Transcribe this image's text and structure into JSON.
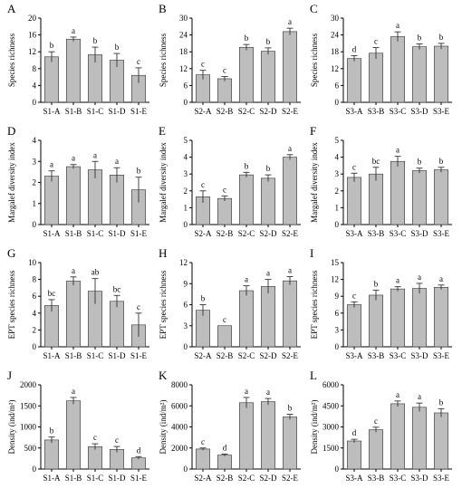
{
  "style": {
    "bar_fill": "#bdbdbd",
    "bar_stroke": "#333333",
    "axis_color": "#000000",
    "error_bar_color": "#333333"
  },
  "chart_data": [
    {
      "panel": "A",
      "type": "bar",
      "ylabel": "Species richness",
      "categories": [
        "S1-A",
        "S1-B",
        "S1-C",
        "S1-D",
        "S1-E"
      ],
      "values": [
        10.8,
        15.0,
        11.3,
        10.0,
        6.4
      ],
      "errors": [
        1.2,
        0.5,
        1.8,
        1.6,
        1.8
      ],
      "sig": [
        "b",
        "a",
        "b",
        "b",
        "c"
      ],
      "ylim": [
        0,
        20
      ],
      "yticks": [
        0,
        4,
        8,
        12,
        16,
        20
      ]
    },
    {
      "panel": "B",
      "type": "bar",
      "ylabel": "Species richness",
      "categories": [
        "S2-A",
        "S2-B",
        "S2-C",
        "S2-D",
        "S2-E"
      ],
      "values": [
        9.8,
        8.4,
        19.6,
        18.2,
        25.2
      ],
      "errors": [
        1.6,
        0.8,
        1.0,
        1.2,
        1.2
      ],
      "sig": [
        "c",
        "c",
        "b",
        "b",
        "a"
      ],
      "ylim": [
        0,
        30
      ],
      "yticks": [
        0,
        6,
        12,
        18,
        24,
        30
      ]
    },
    {
      "panel": "C",
      "type": "bar",
      "ylabel": "Species richness",
      "categories": [
        "S3-A",
        "S3-B",
        "S3-C",
        "S3-D",
        "S3-E"
      ],
      "values": [
        15.6,
        17.5,
        23.4,
        19.8,
        20.0
      ],
      "errors": [
        1.0,
        2.0,
        1.7,
        1.0,
        1.0
      ],
      "sig": [
        "d",
        "c",
        "a",
        "b",
        "b"
      ],
      "ylim": [
        0,
        30
      ],
      "yticks": [
        0,
        6,
        12,
        18,
        24,
        30
      ]
    },
    {
      "panel": "D",
      "type": "bar",
      "ylabel": "Margalef diversity index",
      "categories": [
        "S1-A",
        "S1-B",
        "S1-C",
        "S1-D",
        "S1-E"
      ],
      "values": [
        2.3,
        2.75,
        2.6,
        2.35,
        1.65
      ],
      "errors": [
        0.25,
        0.1,
        0.4,
        0.35,
        0.6
      ],
      "sig": [
        "a",
        "a",
        "a",
        "a",
        "b"
      ],
      "ylim": [
        0,
        4
      ],
      "yticks": [
        0,
        1,
        2,
        3,
        4
      ]
    },
    {
      "panel": "E",
      "type": "bar",
      "ylabel": "Margalef diversity index",
      "categories": [
        "S2-A",
        "S2-B",
        "S2-C",
        "S2-D",
        "S2-E"
      ],
      "values": [
        1.65,
        1.55,
        2.95,
        2.75,
        4.0
      ],
      "errors": [
        0.35,
        0.15,
        0.15,
        0.2,
        0.15
      ],
      "sig": [
        "c",
        "c",
        "b",
        "b",
        "a"
      ],
      "ylim": [
        0,
        5
      ],
      "yticks": [
        0,
        1,
        2,
        3,
        4,
        5
      ]
    },
    {
      "panel": "F",
      "type": "bar",
      "ylabel": "Margalef diversity index",
      "categories": [
        "S3-A",
        "S3-B",
        "S3-C",
        "S3-D",
        "S3-E"
      ],
      "values": [
        2.8,
        3.0,
        3.75,
        3.2,
        3.25
      ],
      "errors": [
        0.25,
        0.4,
        0.3,
        0.15,
        0.15
      ],
      "sig": [
        "c",
        "bc",
        "a",
        "b",
        "b"
      ],
      "ylim": [
        0,
        5
      ],
      "yticks": [
        0,
        1,
        2,
        3,
        4,
        5
      ]
    },
    {
      "panel": "G",
      "type": "bar",
      "ylabel": "EPT species richness",
      "categories": [
        "S1-A",
        "S1-B",
        "S1-C",
        "S1-D",
        "S1-E"
      ],
      "values": [
        4.9,
        7.8,
        6.6,
        5.4,
        2.6
      ],
      "errors": [
        0.7,
        0.5,
        1.5,
        0.7,
        1.4
      ],
      "sig": [
        "bc",
        "a",
        "ab",
        "bc",
        "c"
      ],
      "ylim": [
        0,
        10
      ],
      "yticks": [
        0,
        2,
        4,
        6,
        8,
        10
      ]
    },
    {
      "panel": "H",
      "type": "bar",
      "ylabel": "EPT species richness",
      "categories": [
        "S2-A",
        "S2-B",
        "S2-C",
        "S2-D",
        "S2-E"
      ],
      "values": [
        5.2,
        3.0,
        8.0,
        8.6,
        9.4
      ],
      "errors": [
        0.8,
        0.0,
        0.7,
        1.0,
        0.6
      ],
      "sig": [
        "b",
        "c",
        "a",
        "a",
        "a"
      ],
      "ylim": [
        0,
        12
      ],
      "yticks": [
        0,
        3,
        6,
        9,
        12
      ]
    },
    {
      "panel": "I",
      "type": "bar",
      "ylabel": "EPT species richness",
      "categories": [
        "S3-A",
        "S3-B",
        "S3-C",
        "S3-D",
        "S3-E"
      ],
      "values": [
        7.5,
        9.2,
        10.3,
        10.4,
        10.6
      ],
      "errors": [
        0.5,
        0.9,
        0.4,
        0.9,
        0.4
      ],
      "sig": [
        "c",
        "b",
        "a",
        "a",
        "a"
      ],
      "ylim": [
        0,
        15
      ],
      "yticks": [
        0,
        3,
        6,
        9,
        12,
        15
      ]
    },
    {
      "panel": "J",
      "type": "bar",
      "ylabel": "Density (ind/m²)",
      "categories": [
        "S1-A",
        "S1-B",
        "S1-C",
        "S1-D",
        "S1-E"
      ],
      "values": [
        690,
        1620,
        530,
        465,
        265
      ],
      "errors": [
        70,
        80,
        70,
        70,
        30
      ],
      "sig": [
        "b",
        "a",
        "c",
        "c",
        "d"
      ],
      "ylim": [
        0,
        2000
      ],
      "yticks": [
        0,
        500,
        1000,
        1500,
        2000
      ]
    },
    {
      "panel": "K",
      "type": "bar",
      "ylabel": "Density (ind/m²)",
      "categories": [
        "S2-A",
        "S2-B",
        "S2-C",
        "S2-D",
        "S2-E"
      ],
      "values": [
        1900,
        1320,
        6300,
        6400,
        4950
      ],
      "errors": [
        100,
        100,
        500,
        300,
        250
      ],
      "sig": [
        "c",
        "d",
        "a",
        "a",
        "b"
      ],
      "ylim": [
        0,
        8000
      ],
      "yticks": [
        0,
        2000,
        4000,
        6000,
        8000
      ]
    },
    {
      "panel": "L",
      "type": "bar",
      "ylabel": "Density (ind/m²)",
      "categories": [
        "S3-A",
        "S3-B",
        "S3-C",
        "S3-D",
        "S3-E"
      ],
      "values": [
        2000,
        2800,
        4650,
        4400,
        4000
      ],
      "errors": [
        120,
        180,
        200,
        300,
        300
      ],
      "sig": [
        "d",
        "c",
        "a",
        "a",
        "b"
      ],
      "ylim": [
        0,
        6000
      ],
      "yticks": [
        0,
        1500,
        3000,
        4500,
        6000
      ]
    }
  ]
}
